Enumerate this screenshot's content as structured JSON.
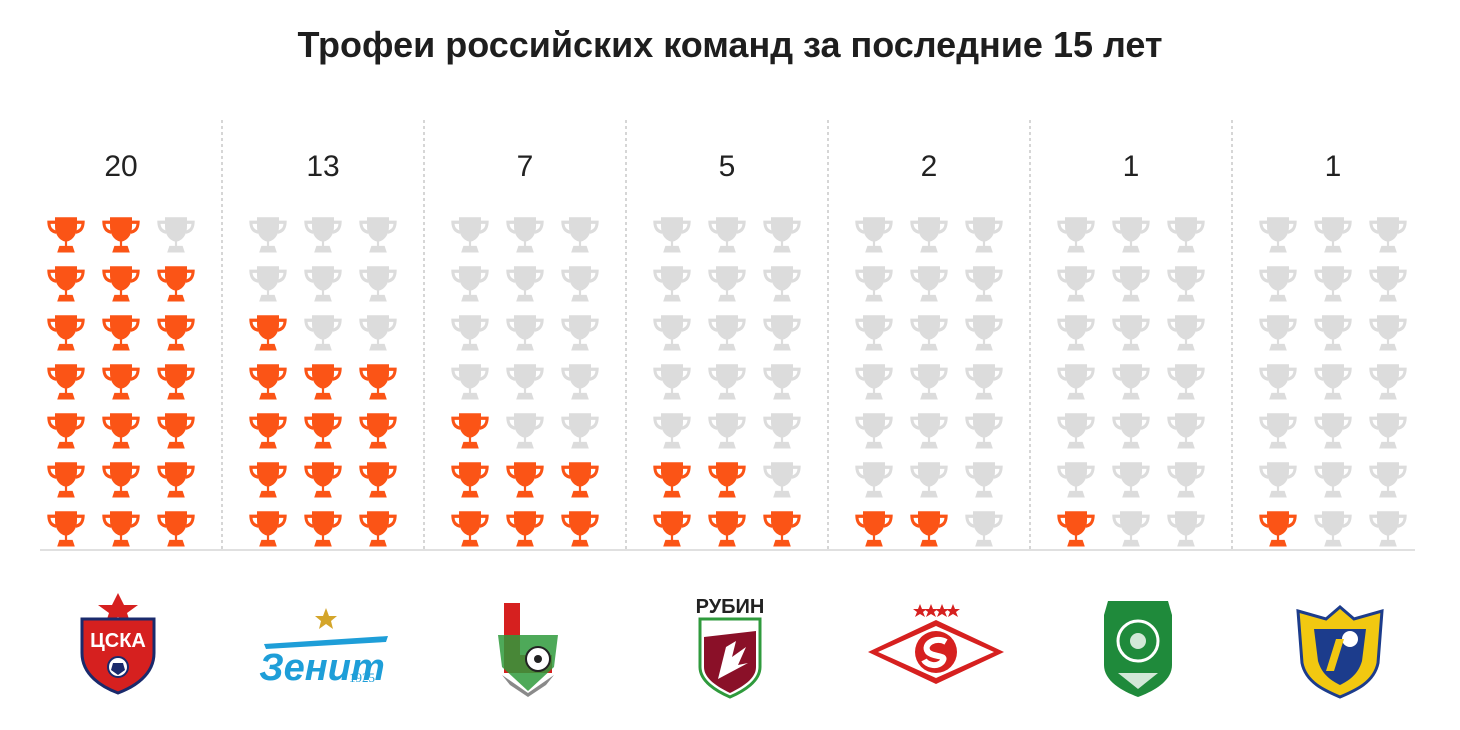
{
  "title": "Трофеи российских команд за последние 15 лет",
  "chart_data": {
    "type": "bar",
    "title": "Трофеи российских команд за последние 15 лет",
    "categories": [
      "ЦСКА",
      "Зенит",
      "Локомотив",
      "Рубин",
      "Спартак",
      "Терек",
      "Ростов"
    ],
    "values": [
      20,
      13,
      7,
      5,
      2,
      1,
      1
    ],
    "ylim": [
      0,
      21
    ],
    "units_per_icon": 1,
    "icons_per_column": 21,
    "grid": false,
    "legend": "none"
  },
  "logos": [
    {
      "club": "cska",
      "icon": "cska-crest-icon",
      "text": "ЦСКА"
    },
    {
      "club": "zenit",
      "icon": "zenit-logo-icon",
      "text": "Зенит",
      "sub": "1925"
    },
    {
      "club": "lokomotiv",
      "icon": "lokomotiv-crest-icon",
      "text": ""
    },
    {
      "club": "rubin",
      "icon": "rubin-crest-icon",
      "text": "РУБИН"
    },
    {
      "club": "spartak",
      "icon": "spartak-logo-icon",
      "text": ""
    },
    {
      "club": "terek",
      "icon": "terek-crest-icon",
      "text": ""
    },
    {
      "club": "rostov",
      "icon": "rostov-crest-icon",
      "text": ""
    }
  ],
  "colors": {
    "won": "#fb5416",
    "empty": "#dcdcdc",
    "divider": "#c8c8c8",
    "baseline": "#e0e0e0",
    "text": "#222222"
  }
}
